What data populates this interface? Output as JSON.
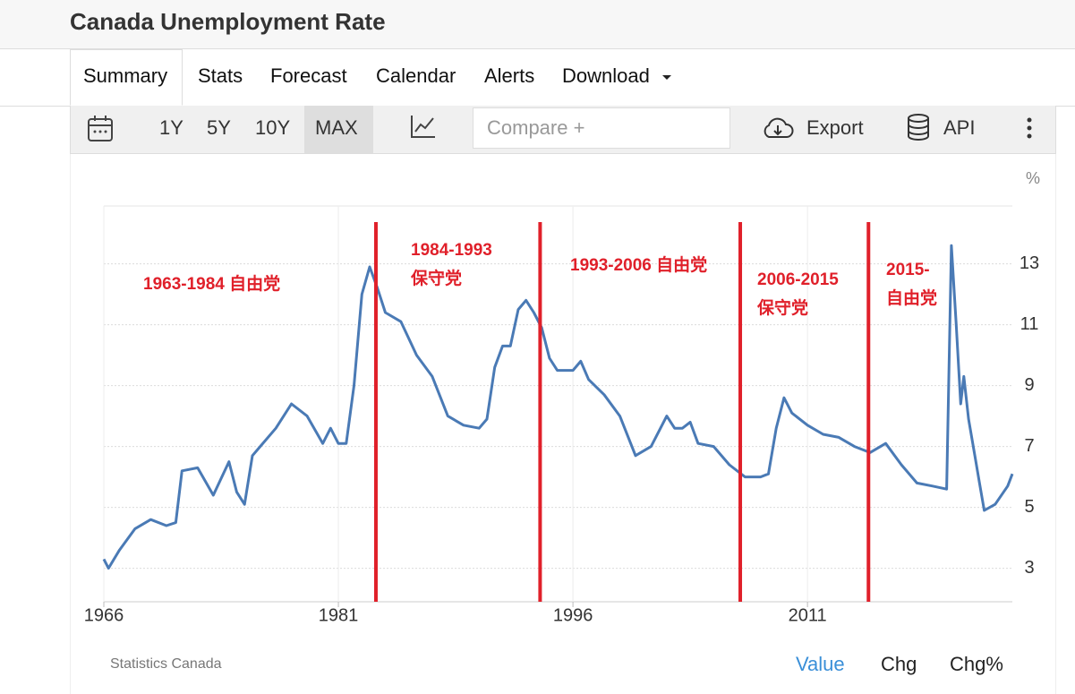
{
  "header": {
    "title": "Canada Unemployment Rate"
  },
  "tabs": [
    "Summary",
    "Stats",
    "Forecast",
    "Calendar",
    "Alerts",
    "Download"
  ],
  "toolbar": {
    "ranges": [
      "1Y",
      "5Y",
      "10Y",
      "MAX"
    ],
    "compare": "Compare +",
    "export": "Export",
    "api": "API"
  },
  "footer": {
    "source": "Statistics Canada",
    "views": [
      "Value",
      "Chg",
      "Chg%"
    ]
  },
  "chart_data": {
    "type": "line",
    "unit": "%",
    "color": "#4a7ab5",
    "x": [
      1966.0,
      1966.3,
      1967,
      1968,
      1969,
      1970,
      1970.6,
      1971,
      1972,
      1973,
      1974,
      1974.5,
      1975,
      1975.5,
      1976,
      1977,
      1978,
      1979,
      1980,
      1980.5,
      1981,
      1981.5,
      1982,
      1982.5,
      1983,
      1983.5,
      1984,
      1985,
      1986,
      1987,
      1988,
      1989,
      1990,
      1990.5,
      1991,
      1991.5,
      1992,
      1992.5,
      1993,
      1993.5,
      1994,
      1994.5,
      1995,
      1996,
      1996.5,
      1997,
      1998,
      1999,
      2000,
      2001,
      2002,
      2002.5,
      2003,
      2003.5,
      2004,
      2005,
      2006,
      2007,
      2008,
      2008.5,
      2009,
      2009.5,
      2010,
      2011,
      2012,
      2013,
      2014,
      2015,
      2016,
      2017,
      2018,
      2019,
      2019.9,
      2020.2,
      2020.5,
      2020.8,
      2021.0,
      2021.3,
      2021.7,
      2022.0,
      2022.3,
      2023,
      2023.8,
      2024.1
    ],
    "values": [
      3.3,
      3.0,
      3.6,
      4.3,
      4.6,
      4.4,
      4.5,
      6.2,
      6.3,
      5.4,
      6.5,
      5.5,
      5.1,
      6.7,
      7.0,
      7.6,
      8.4,
      8.0,
      7.1,
      7.6,
      7.1,
      7.1,
      9.0,
      12.0,
      12.9,
      12.2,
      11.4,
      11.1,
      10.0,
      9.3,
      8.0,
      7.7,
      7.6,
      7.9,
      9.6,
      10.3,
      10.3,
      11.5,
      11.8,
      11.4,
      10.9,
      9.9,
      9.5,
      9.5,
      9.8,
      9.2,
      8.7,
      8.0,
      6.7,
      7.0,
      8.0,
      7.6,
      7.6,
      7.8,
      7.1,
      7.0,
      6.4,
      6.0,
      6.0,
      6.1,
      7.6,
      8.6,
      8.1,
      7.7,
      7.4,
      7.3,
      7.0,
      6.8,
      7.1,
      6.4,
      5.8,
      5.7,
      5.6,
      13.6,
      11.1,
      8.4,
      9.3,
      7.9,
      6.7,
      5.8,
      4.9,
      5.1,
      5.7,
      6.1
    ],
    "xlim": [
      1966,
      2024.1
    ],
    "ylim": [
      1.9,
      14.9
    ],
    "xticks": [
      1966,
      1981,
      1996,
      2011
    ],
    "yticks": [
      3,
      5,
      7,
      9,
      11,
      13
    ],
    "grid": true,
    "vlines": [
      1983.4,
      1993.9,
      2006.7,
      2014.9
    ],
    "vline_color": "#e0202a",
    "annotations": [
      {
        "lines": [
          "1963-1984 自由党"
        ]
      },
      {
        "lines": [
          "1984-1993",
          "保守党"
        ]
      },
      {
        "lines": [
          "1993-2006 自由党"
        ]
      },
      {
        "lines": [
          "2006-2015",
          "保守党"
        ]
      },
      {
        "lines": [
          "2015-",
          "自由党"
        ]
      }
    ]
  }
}
